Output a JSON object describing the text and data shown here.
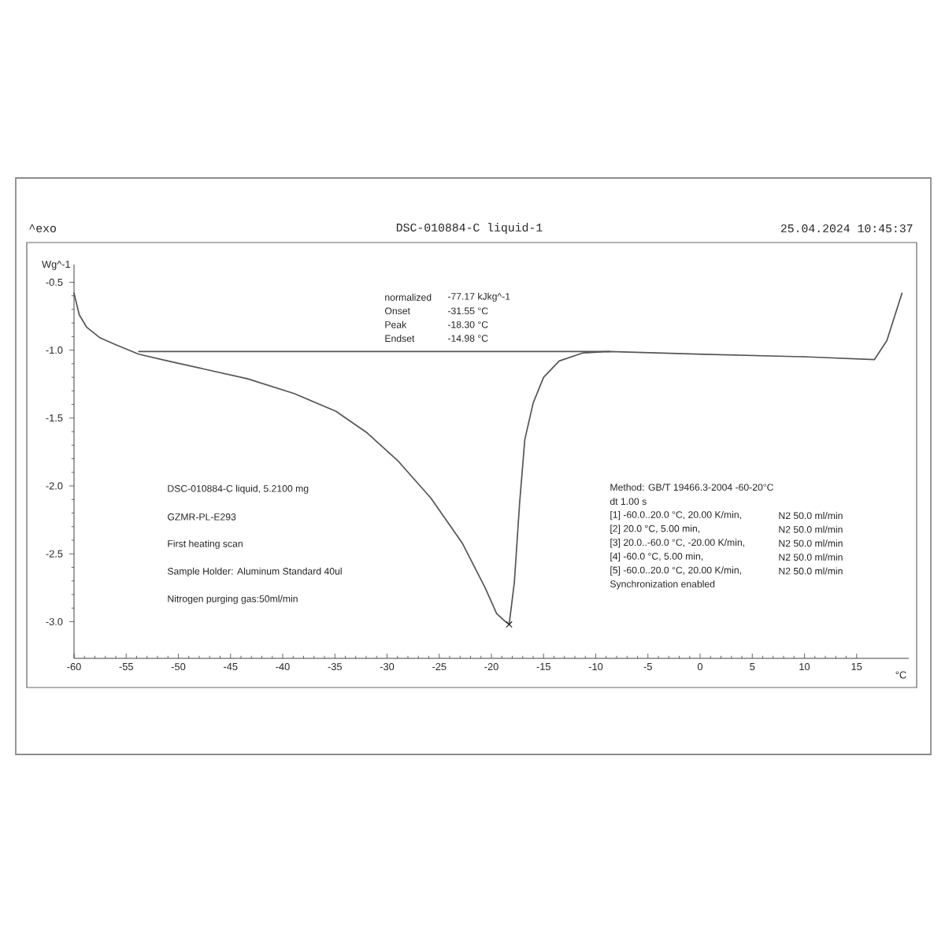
{
  "chart_data": {
    "type": "line",
    "title": "DSC-010884-C liquid-1",
    "xlabel": "°C",
    "ylabel": "Wg^-1",
    "xlim": [
      -60,
      20
    ],
    "ylim": [
      -3.27,
      -0.37
    ],
    "xticks": [
      -60,
      -55,
      -50,
      -45,
      -40,
      -35,
      -30,
      -25,
      -20,
      -15,
      -10,
      -5,
      0,
      5,
      10,
      15
    ],
    "yticks": [
      {
        "value": -0.5,
        "label": "-0.5"
      },
      {
        "value": -1.0,
        "label": "-1.0"
      },
      {
        "value": -1.5,
        "label": "-1.5"
      },
      {
        "value": -2.0,
        "label": "-2.0"
      },
      {
        "value": -2.5,
        "label": "-2.5"
      },
      {
        "value": -3.0,
        "label": "-3.0"
      }
    ],
    "series": [
      {
        "color": "#555555",
        "x": [
          -60,
          -59.5,
          -58.8,
          -57.5,
          -56.0,
          -53.8,
          -51.0,
          -47.5,
          -43.4,
          -38.9,
          -34.9,
          -31.9,
          -28.9,
          -25.8,
          -22.8,
          -20.6,
          -19.5,
          -18.8,
          -18.3,
          -17.8,
          -17.3,
          -16.8,
          -16.0,
          -15.0,
          -13.5,
          -11.2,
          -8.7,
          0.3,
          10.4,
          16.7,
          17.9,
          19.35
        ],
        "values": [
          -0.58,
          -0.74,
          -0.83,
          -0.91,
          -0.96,
          -1.03,
          -1.08,
          -1.14,
          -1.21,
          -1.32,
          -1.45,
          -1.61,
          -1.82,
          -2.09,
          -2.42,
          -2.75,
          -2.94,
          -2.99,
          -3.02,
          -2.71,
          -2.13,
          -1.66,
          -1.39,
          -1.2,
          -1.08,
          -1.02,
          -1.01,
          -1.03,
          -1.05,
          -1.07,
          -0.93,
          -0.58
        ]
      },
      {
        "type": "line",
        "color": "#555555",
        "x": [
          -53.8,
          -8.7
        ],
        "values": [
          -1.01,
          -1.01
        ]
      },
      {
        "type": "scatter",
        "marker": "cross",
        "color": "#222222",
        "x": [
          -18.3
        ],
        "values": [
          -3.02
        ]
      }
    ],
    "annotations": [
      "^exo",
      "25.04.2024 10:45:37",
      "normalized",
      "-77.17 kJkg^-1",
      "Onset",
      "-31.55 °C",
      "Peak",
      "-18.30 °C",
      "Endset",
      "-14.98 °C",
      "DSC-010884-C liquid, 5.2100 mg",
      "GZMR-PL-E293",
      "First heating scan",
      "Sample Holder: Aluminum Standard 40ul",
      "Nitrogen purging gas:50ml/min",
      "Method: GB/T 19466.3-2004 -60-20°C",
      "dt 1.00 s",
      "[1] -60.0..20.0 °C, 20.00 K/min,",
      "N2 50.0 ml/min",
      "[2] 20.0 °C, 5.00 min,",
      "N2 50.0 ml/min",
      "[3] 20.0..-60.0 °C, -20.00 K/min,",
      "N2 50.0 ml/min",
      "[4] -60.0 °C, 5.00 min,",
      "N2 50.0 ml/min",
      "[5] -60.0..20.0 °C, 20.00 K/min,",
      "N2 50.0 ml/min",
      "Synchronization enabled"
    ]
  }
}
